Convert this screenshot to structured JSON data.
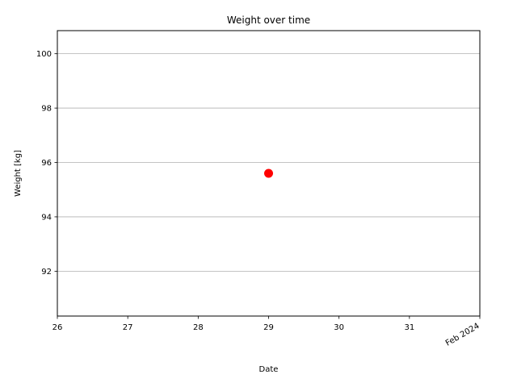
{
  "chart_data": {
    "type": "scatter",
    "title": "Weight over time",
    "xlabel": "Date",
    "ylabel": "Weight [kg]",
    "x_ticks": [
      "26",
      "27",
      "28",
      "29",
      "30",
      "31",
      "Feb 2024"
    ],
    "y_ticks": [
      92,
      94,
      96,
      98,
      100
    ],
    "xlim": [
      "2024-01-26",
      "2024-02-01"
    ],
    "ylim": [
      90.35,
      100.85
    ],
    "grid": "horizontal",
    "series": [
      {
        "color": "#ff0000",
        "points": [
          {
            "x": "2024-01-29",
            "y": 95.6
          }
        ]
      }
    ]
  }
}
